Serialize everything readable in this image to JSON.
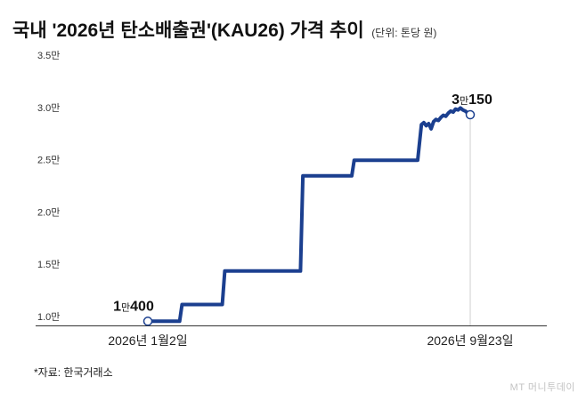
{
  "title": "국내 '2026년 탄소배출권'(KAU26) 가격 추이",
  "unit": "(단위: 톤당 원)",
  "source": "*자료: 한국거래소",
  "brand": "MT 머니투데이",
  "chart_data": {
    "type": "line",
    "title": "국내 '2026년 탄소배출권'(KAU26) 가격 추이",
    "unit": "톤당 원",
    "ylim": [
      10000,
      35000
    ],
    "yticks": [
      10000,
      15000,
      20000,
      25000,
      30000,
      35000
    ],
    "ytick_labels": [
      "1.0만",
      "1.5만",
      "2.0만",
      "2.5만",
      "3.0만",
      "3.5만"
    ],
    "xlim": [
      "2026-01-02",
      "2026-09-23"
    ],
    "xtick_labels": [
      "2026년 1월2일",
      "2026년 9월23일"
    ],
    "grid": false,
    "line_color": "#1b3f8f",
    "series": [
      {
        "points": [
          [
            "2026-01-02",
            10400
          ],
          [
            "2026-01-28",
            10400
          ],
          [
            "2026-01-30",
            12000
          ],
          [
            "2026-03-04",
            12000
          ],
          [
            "2026-03-06",
            15200
          ],
          [
            "2026-05-07",
            15200
          ],
          [
            "2026-05-09",
            24300
          ],
          [
            "2026-06-18",
            24300
          ],
          [
            "2026-06-20",
            25800
          ],
          [
            "2026-08-11",
            25800
          ],
          [
            "2026-08-14",
            29200
          ],
          [
            "2026-08-16",
            29400
          ],
          [
            "2026-08-18",
            29100
          ],
          [
            "2026-08-20",
            29300
          ],
          [
            "2026-08-22",
            28800
          ],
          [
            "2026-08-24",
            29500
          ],
          [
            "2026-08-26",
            29700
          ],
          [
            "2026-08-28",
            29600
          ],
          [
            "2026-08-30",
            29900
          ],
          [
            "2026-09-01",
            30100
          ],
          [
            "2026-09-03",
            30000
          ],
          [
            "2026-09-05",
            30300
          ],
          [
            "2026-09-07",
            30500
          ],
          [
            "2026-09-09",
            30400
          ],
          [
            "2026-09-11",
            30700
          ],
          [
            "2026-09-13",
            30600
          ],
          [
            "2026-09-15",
            30800
          ],
          [
            "2026-09-17",
            30600
          ],
          [
            "2026-09-19",
            30500
          ],
          [
            "2026-09-21",
            30300
          ],
          [
            "2026-09-23",
            30150
          ]
        ]
      }
    ],
    "annotations": [
      {
        "date": "2026-01-02",
        "value": 10400,
        "label_num1": "1",
        "label_unit": "만",
        "label_num2": "400"
      },
      {
        "date": "2026-09-23",
        "value": 30150,
        "label_num1": "3",
        "label_unit": "만",
        "label_num2": "150"
      }
    ]
  }
}
